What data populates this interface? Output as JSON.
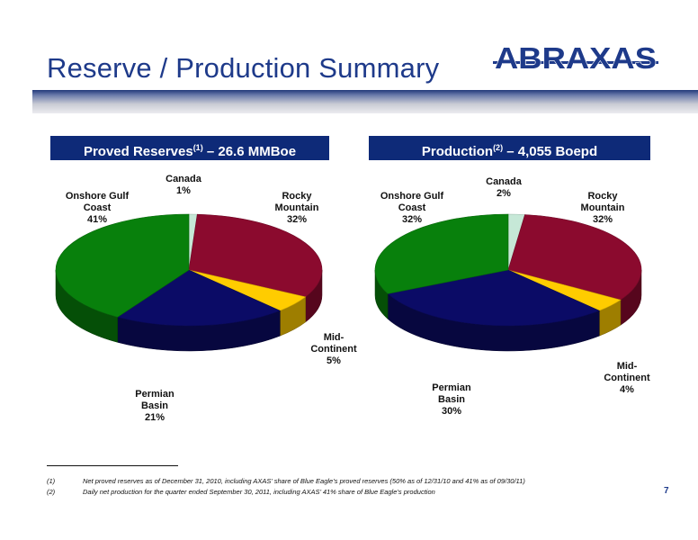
{
  "page": {
    "title": "Reserve / Production Summary",
    "logo_text": "ABRAXAS",
    "page_number": "7"
  },
  "charts": [
    {
      "header": {
        "main": "Proved Reserves",
        "sup": "(1)",
        "rest": " – 26.6 MMBoe"
      }
    },
    {
      "header": {
        "main": "Production",
        "sup": "(2)",
        "rest": " – 4,055 Boepd"
      }
    }
  ],
  "chart_data": [
    {
      "type": "pie",
      "title": "Proved Reserves(1) – 26.6 MMBoe",
      "slices": [
        {
          "label": "Canada",
          "value": 1,
          "value_label": "1%",
          "color": "#c6e8d7"
        },
        {
          "label": "Rocky Mountain",
          "value": 32,
          "value_label": "32%",
          "color": "#8b0a2e"
        },
        {
          "label": "Mid-Continent",
          "value": 5,
          "value_label": "5%",
          "color": "#ffcc00"
        },
        {
          "label": "Permian Basin",
          "value": 21,
          "value_label": "21%",
          "color": "#0b0b66"
        },
        {
          "label": "Onshore Gulf Coast",
          "value": 41,
          "value_label": "41%",
          "color": "#08800c"
        }
      ]
    },
    {
      "type": "pie",
      "title": "Production(2) – 4,055 Boepd",
      "slices": [
        {
          "label": "Canada",
          "value": 2,
          "value_label": "2%",
          "color": "#c6e8d7"
        },
        {
          "label": "Rocky Mountain",
          "value": 32,
          "value_label": "32%",
          "color": "#8b0a2e"
        },
        {
          "label": "Mid-Continent",
          "value": 4,
          "value_label": "4%",
          "color": "#ffcc00"
        },
        {
          "label": "Permian Basin",
          "value": 30,
          "value_label": "30%",
          "color": "#0b0b66"
        },
        {
          "label": "Onshore Gulf Coast",
          "value": 32,
          "value_label": "32%",
          "color": "#08800c"
        }
      ]
    }
  ],
  "labels": {
    "left": {
      "canada": "Canada\n1%",
      "onshore": "Onshore Gulf\nCoast\n41%",
      "rocky": "Rocky\nMountain\n32%",
      "mid": "Mid-\nContinent\n5%",
      "permian": "Permian\nBasin\n21%"
    },
    "right": {
      "canada": "Canada\n2%",
      "onshore": "Onshore Gulf\nCoast\n32%",
      "rocky": "Rocky\nMountain\n32%",
      "mid": "Mid-\nContinent\n4%",
      "permian": "Permian\nBasin\n30%"
    }
  },
  "footnotes": [
    {
      "num": "(1)",
      "text": "Net proved reserves as of December 31, 2010, including AXAS’ share of Blue Eagle’s proved reserves (50% as of 12/31/10 and 41% as of 09/30/11)"
    },
    {
      "num": "(2)",
      "text": "Daily net production for the quarter ended September 30, 2011, including AXAS’ 41% share of Blue Eagle’s production"
    }
  ]
}
